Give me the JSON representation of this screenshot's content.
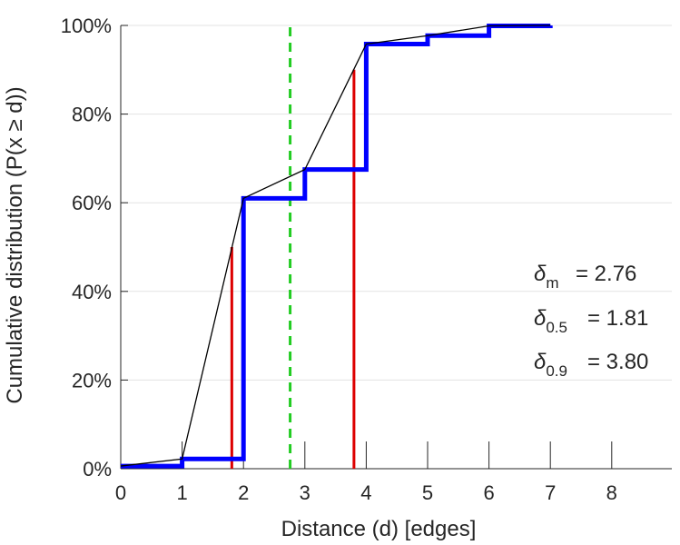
{
  "chart_data": {
    "type": "line",
    "title": "",
    "xlabel": "Distance (d) [edges]",
    "ylabel": "Cumulative distribution (P(x ≥ d))",
    "xlim": [
      0,
      9
    ],
    "ylim": [
      0,
      100
    ],
    "x_ticks": [
      0,
      1,
      2,
      3,
      4,
      5,
      6,
      7,
      8
    ],
    "x_tick_labels": [
      "0",
      "1",
      "2",
      "3",
      "4",
      "5",
      "6",
      "7",
      "8"
    ],
    "y_ticks": [
      0,
      20,
      40,
      60,
      80,
      100
    ],
    "y_tick_labels": [
      "0%",
      "20%",
      "40%",
      "60%",
      "80%",
      "100%"
    ],
    "grid": "horizontal",
    "series": [
      {
        "style": "step",
        "color": "#0000ff",
        "x": [
          0,
          1,
          2,
          3,
          4,
          5,
          6,
          7
        ],
        "y": [
          0.6,
          2.2,
          61,
          67.5,
          95.8,
          97.7,
          99.9,
          100
        ]
      },
      {
        "style": "line",
        "color": "#000000",
        "x": [
          0,
          1,
          2,
          3,
          4,
          5,
          6,
          7
        ],
        "y": [
          0.6,
          2.2,
          61,
          67.5,
          95.8,
          97.7,
          99.9,
          100
        ]
      }
    ],
    "vertical_lines": [
      {
        "x": 1.81,
        "y_to": 50,
        "color": "#dd0000",
        "style": "solid"
      },
      {
        "x": 3.8,
        "y_to": 90,
        "color": "#dd0000",
        "style": "solid"
      },
      {
        "x": 2.76,
        "y_to": 100,
        "color": "#22cc22",
        "style": "dashed"
      }
    ],
    "annotations": [
      {
        "symbol": "δ",
        "subscript": "m",
        "text": "= 2.76"
      },
      {
        "symbol": "δ",
        "subscript": "0.5",
        "text": "= 1.81"
      },
      {
        "symbol": "δ",
        "subscript": "0.9",
        "text": "= 3.80"
      }
    ]
  }
}
